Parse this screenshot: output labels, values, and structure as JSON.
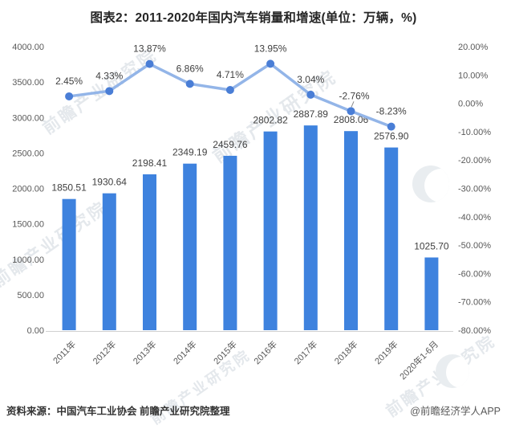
{
  "page": {
    "title": "图表2：2011-2020年国内汽车销量和增速(单位：万辆，%)"
  },
  "footer": {
    "source_prefix": "资料来源：",
    "source_body": "中国汽车工业协会 前瞻产业研究院整理",
    "credit": "@前瞻经济学人APP"
  },
  "watermark": {
    "text": "前瞻产业研究院",
    "logo_icon": "qianzhan-logo-icon"
  },
  "colors": {
    "bar": "#3E82DE",
    "line": "#93B5E8",
    "marker": "#4A7ED6",
    "data_label": "#404040",
    "axis_text": "#595959",
    "axis_line": "#D0D0D0",
    "leader": "#8A8A8A"
  },
  "chart_data": {
    "type": "bar",
    "subtype": "bar+line dual-axis combo",
    "title": "图表2：2011-2020年国内汽车销量和增速(单位：万辆，%)",
    "categories": [
      "2011年",
      "2012年",
      "2013年",
      "2014年",
      "2015年",
      "2016年",
      "2017年",
      "2018年",
      "2019年",
      "2020年1-6月"
    ],
    "series": [
      {
        "name": "汽车销量(万辆)",
        "type": "bar",
        "axis": "left",
        "values": [
          1850.51,
          1930.64,
          2198.41,
          2349.19,
          2459.76,
          2802.82,
          2887.89,
          2808.06,
          2576.9,
          1025.7
        ],
        "labels": [
          "1850.51",
          "1930.64",
          "2198.41",
          "2349.19",
          "2459.76",
          "2802.82",
          "2887.89",
          "2808.06",
          "2576.90",
          "1025.70"
        ]
      },
      {
        "name": "增速(%)",
        "type": "line",
        "axis": "right",
        "values": [
          2.45,
          4.33,
          13.87,
          6.86,
          4.71,
          13.95,
          3.04,
          -2.76,
          -8.23,
          null
        ],
        "labels": [
          "2.45%",
          "4.33%",
          "13.87%",
          "6.86%",
          "4.71%",
          "13.95%",
          "3.04%",
          "-2.76%",
          "-8.23%",
          null
        ]
      }
    ],
    "left_axis": {
      "min": 0,
      "max": 4000,
      "step": 500,
      "tick_labels": [
        "0.00",
        "500.00",
        "1000.00",
        "1500.00",
        "2000.00",
        "2500.00",
        "3000.00",
        "3500.00",
        "4000.00"
      ]
    },
    "right_axis": {
      "min": -80,
      "max": 20,
      "step": 10,
      "tick_labels": [
        "-80.00%",
        "-70.00%",
        "-60.00%",
        "-50.00%",
        "-40.00%",
        "-30.00%",
        "-20.00%",
        "-10.00%",
        "0.00%",
        "10.00%",
        "20.00%"
      ]
    },
    "grid": false,
    "legend": "none",
    "label_dx": [
      0,
      0,
      0,
      0,
      0,
      0,
      0,
      4,
      0,
      0
    ],
    "leader_line_point": 7
  }
}
